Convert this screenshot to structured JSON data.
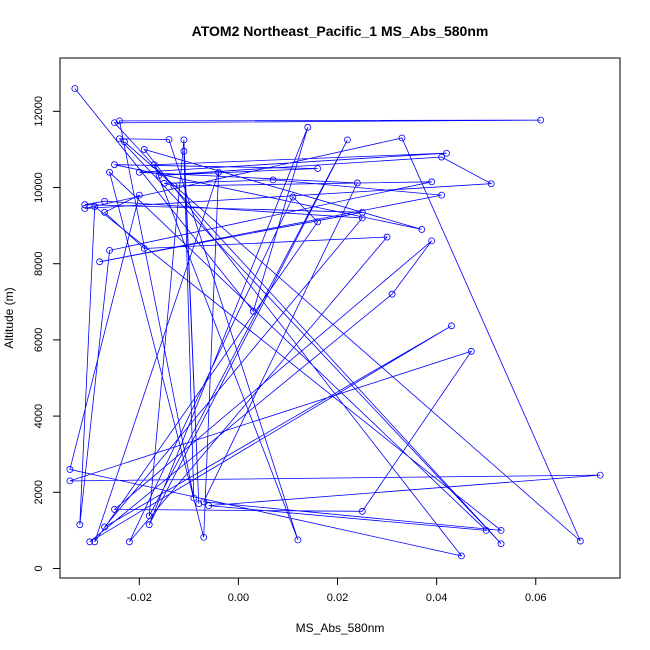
{
  "chart_data": {
    "type": "line",
    "title": "ATOM2 Northeast_Pacific_1 MS_Abs_580nm",
    "xlabel": "MS_Abs_580nm",
    "ylabel": "Altitude (m)",
    "xlim": [
      -0.036,
      0.077
    ],
    "ylim": [
      -250,
      13400
    ],
    "x_ticks": [
      -0.02,
      0.0,
      0.02,
      0.04,
      0.06
    ],
    "x_tick_labels": [
      "-0.02",
      "0.00",
      "0.02",
      "0.04",
      "0.06"
    ],
    "y_ticks": [
      0,
      2000,
      4000,
      6000,
      8000,
      10000,
      12000
    ],
    "y_tick_labels": [
      "0",
      "2000",
      "4000",
      "6000",
      "8000",
      "10000",
      "12000"
    ],
    "grid": false,
    "marker": "open-circle",
    "color": "#0000ff",
    "series": [
      {
        "points": [
          [
            -0.033,
            12600
          ],
          [
            0.003,
            6750
          ],
          [
            0.014,
            11580
          ],
          [
            -0.018,
            1150
          ],
          [
            0.022,
            11250
          ],
          [
            -0.018,
            1380
          ],
          [
            -0.011,
            11250
          ],
          [
            -0.008,
            1700
          ],
          [
            -0.011,
            10950
          ],
          [
            -0.009,
            1850
          ],
          [
            -0.024,
            11750
          ],
          [
            0.061,
            11770
          ],
          [
            -0.025,
            11700
          ],
          [
            0.053,
            650
          ],
          [
            -0.024,
            11280
          ],
          [
            -0.014,
            11260
          ],
          [
            0.012,
            750
          ],
          [
            -0.017,
            10600
          ],
          [
            0.042,
            10900
          ],
          [
            -0.02,
            10400
          ],
          [
            0.024,
            10120
          ],
          [
            -0.007,
            1750
          ],
          [
            0.053,
            1000
          ],
          [
            -0.029,
            9500
          ],
          [
            -0.032,
            1150
          ],
          [
            -0.026,
            8350
          ],
          [
            0.039,
            10150
          ],
          [
            -0.013,
            10040
          ],
          [
            -0.015,
            10110
          ],
          [
            0.007,
            10200
          ],
          [
            0.041,
            9800
          ],
          [
            -0.028,
            8050
          ],
          [
            0.025,
            9350
          ],
          [
            -0.031,
            9550
          ],
          [
            -0.027,
            9640
          ],
          [
            0.025,
            9200
          ],
          [
            -0.027,
            1090
          ],
          [
            0.043,
            6370
          ],
          [
            -0.03,
            700
          ],
          [
            0.031,
            7200
          ],
          [
            0.039,
            8600
          ],
          [
            -0.025,
            1550
          ],
          [
            0.025,
            1500
          ],
          [
            0.047,
            5700
          ],
          [
            -0.034,
            2300
          ],
          [
            0.073,
            2450
          ],
          [
            -0.006,
            1650
          ],
          [
            0.05,
            1000
          ],
          [
            -0.026,
            10400
          ],
          [
            -0.007,
            820
          ],
          [
            -0.004,
            10400
          ],
          [
            -0.029,
            700
          ],
          [
            0.016,
            9100
          ],
          [
            0.011,
            9750
          ],
          [
            -0.022,
            700
          ],
          [
            0.03,
            8700
          ],
          [
            -0.019,
            8400
          ],
          [
            -0.027,
            9350
          ],
          [
            -0.02,
            9800
          ],
          [
            -0.034,
            2600
          ],
          [
            0.045,
            330
          ],
          [
            -0.019,
            11000
          ],
          [
            0.037,
            8900
          ],
          [
            -0.025,
            10600
          ],
          [
            0.016,
            10500
          ],
          [
            -0.016,
            10320
          ],
          [
            0.041,
            10800
          ],
          [
            0.051,
            10100
          ],
          [
            -0.031,
            9450
          ],
          [
            0.033,
            11300
          ],
          [
            0.069,
            720
          ],
          [
            -0.023,
            11200
          ]
        ]
      }
    ]
  }
}
